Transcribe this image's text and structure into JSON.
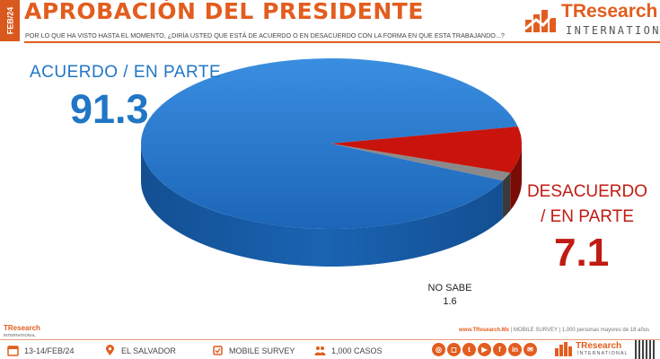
{
  "header": {
    "date_tab": "FEB/24",
    "title": "APROBACIÓN DEL PRESIDENTE",
    "question": "POR LO QUE HA VISTO HASTA EL MOMENTO, ¿DIRÍA USTED QUE ESTÁ DE ACUERDO O EN DESACUERDO CON LA FORMA EN QUE ESTA TRABAJANDO...?",
    "logo_name": "TResearch",
    "logo_sub": "INTERNATIONAL"
  },
  "chart_data": {
    "type": "pie",
    "slices": [
      {
        "label": "ACUERDO / EN PARTE",
        "value": 91.3,
        "display": "91.3",
        "color": "#1f6fc5"
      },
      {
        "label": "DESACUERDO / EN PARTE",
        "value": 7.1,
        "display": "7.1",
        "color": "#c8140c"
      },
      {
        "label": "NO SABE",
        "value": 1.6,
        "display": "1.6",
        "color": "#8a8a8a"
      }
    ]
  },
  "footer": {
    "note_site": "www.TResearch.Mx",
    "note_rest": "| MOBILE SURVEY | 1,000 personas mayores de 18 años",
    "logo": "TResearch",
    "logo_sub": "INTERNATIONAL",
    "dates": "13-14/FEB/24",
    "location": "EL SALVADOR",
    "method": "MOBILE SURVEY",
    "cases": "1,000 CASOS",
    "brand": "TResearch",
    "brand_sub": "INTERNATIONAL"
  },
  "colors": {
    "accent": "#e25d1f",
    "blue": "#1f6fc5",
    "red": "#c8140c",
    "gray": "#8a8a8a"
  },
  "icons": [
    "calendar-icon",
    "location-pin-icon",
    "mobile-icon",
    "people-icon",
    "social-icons",
    "qr-code"
  ]
}
